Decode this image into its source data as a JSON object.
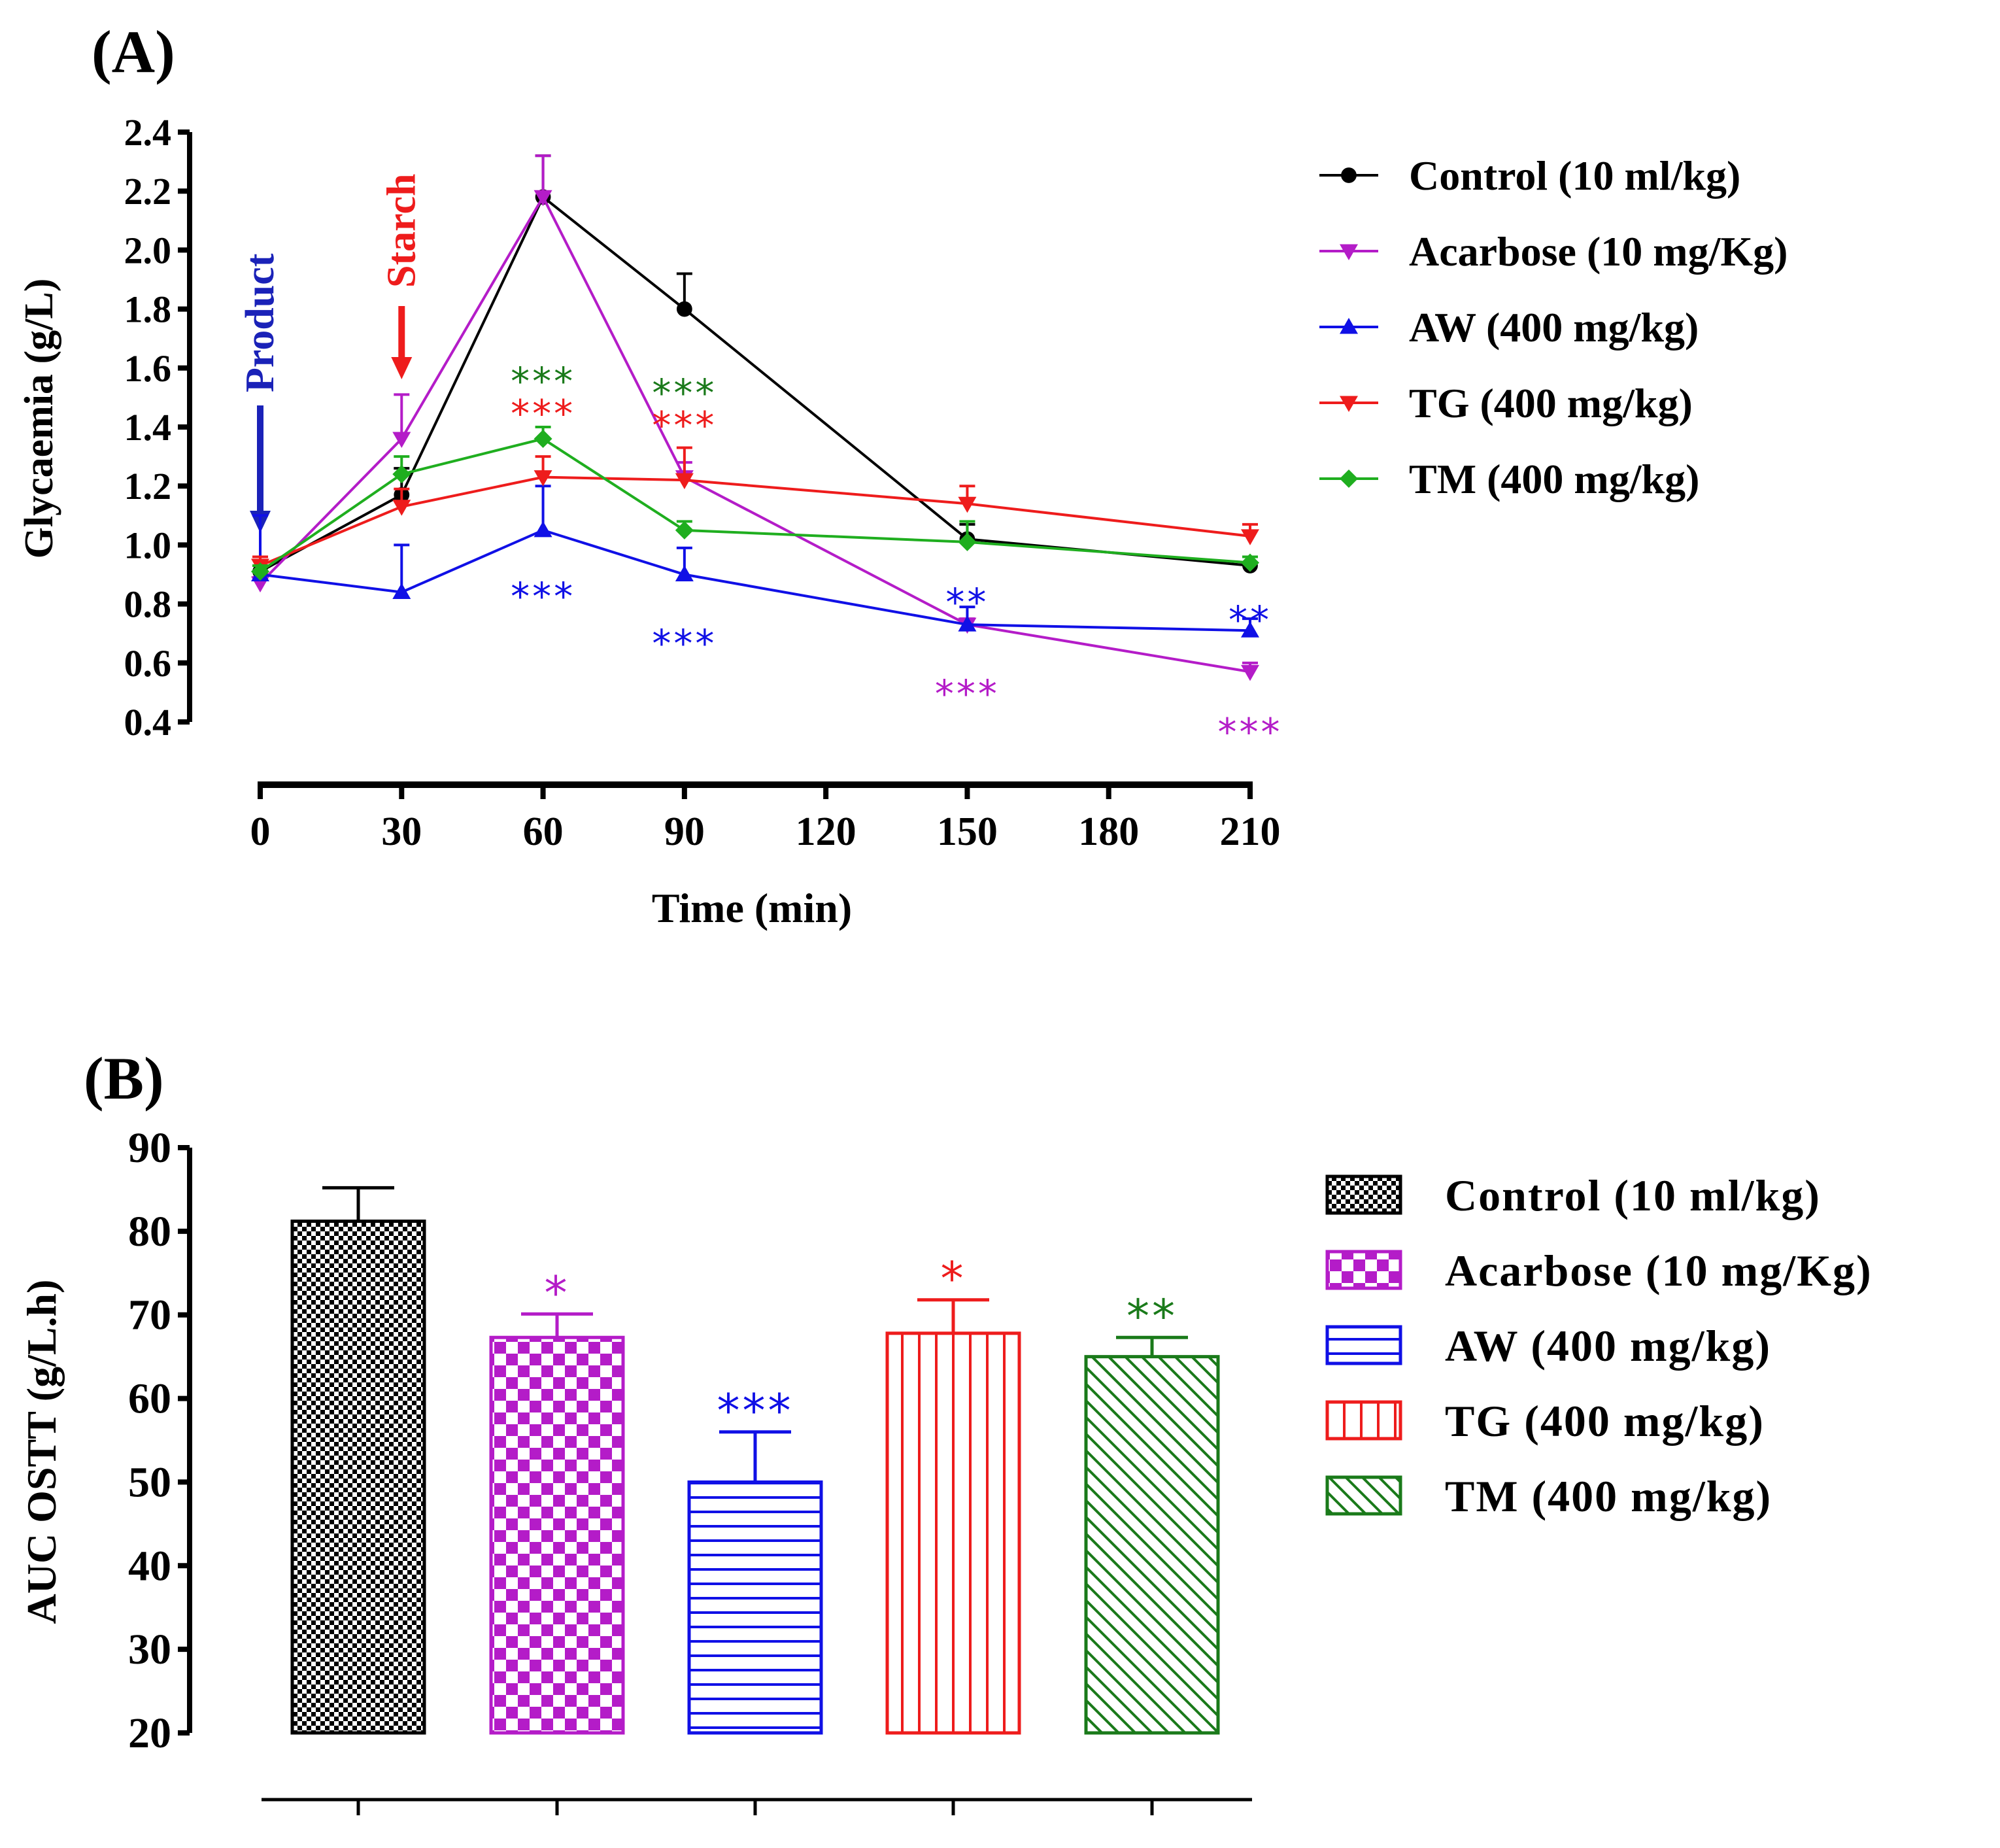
{
  "chart_data": [
    {
      "panel": "(A)",
      "type": "line",
      "xlabel": "Time (min)",
      "ylabel": "Glycaemia (g/L)",
      "x": [
        0,
        30,
        60,
        90,
        150,
        210
      ],
      "xticks": [
        "0",
        "30",
        "60",
        "90",
        "120",
        "150",
        "180",
        "210"
      ],
      "xtick_values": [
        0,
        30,
        60,
        90,
        120,
        150,
        180,
        210
      ],
      "xlim": [
        0,
        210
      ],
      "ylim": [
        0.4,
        2.4
      ],
      "yticks": [
        "0.4",
        "0.6",
        "0.8",
        "1.0",
        "1.2",
        "1.4",
        "1.6",
        "1.8",
        "2.0",
        "2.2",
        "2.4"
      ],
      "ytick_values": [
        0.4,
        0.6,
        0.8,
        1.0,
        1.2,
        1.4,
        1.6,
        1.8,
        2.0,
        2.2,
        2.4
      ],
      "legend_position": "right",
      "series": [
        {
          "name": "Control (10 ml/kg)",
          "color": "#000000",
          "marker": "circle",
          "values": [
            0.91,
            1.17,
            2.18,
            1.8,
            1.02,
            0.93
          ],
          "errors": [
            0.02,
            0.09,
            0.14,
            0.12,
            0.05,
            0.03
          ]
        },
        {
          "name": "Acarbose (10 mg/Kg)",
          "color": "#b41cc8",
          "marker": "triangle-down",
          "values": [
            0.87,
            1.36,
            2.18,
            1.23,
            0.73,
            0.57
          ],
          "errors": [
            0.02,
            0.15,
            0.14,
            0.05,
            0.02,
            0.03
          ]
        },
        {
          "name": "AW (400 mg/kg)",
          "color": "#1010e6",
          "marker": "triangle-up",
          "values": [
            0.9,
            0.84,
            1.05,
            0.9,
            0.73,
            0.71
          ],
          "errors": [
            0.2,
            0.16,
            0.15,
            0.09,
            0.06,
            0.04
          ]
        },
        {
          "name": "TG (400 mg/kg)",
          "color": "#ee1c1c",
          "marker": "triangle-down",
          "values": [
            0.93,
            1.13,
            1.23,
            1.22,
            1.14,
            1.03
          ],
          "errors": [
            0.03,
            0.06,
            0.07,
            0.11,
            0.06,
            0.04
          ]
        },
        {
          "name": "TM (400 mg/kg)",
          "color": "#1fae1f",
          "marker": "diamond",
          "values": [
            0.91,
            1.24,
            1.36,
            1.05,
            1.01,
            0.94
          ],
          "errors": [
            0.02,
            0.06,
            0.04,
            0.03,
            0.07,
            0.02
          ]
        }
      ],
      "arrows": [
        {
          "label": "Product",
          "x": 0,
          "color": "#1a22b8"
        },
        {
          "label": "Starch",
          "x": 30,
          "color": "#ee1c1c"
        }
      ],
      "annotations": [
        {
          "text": "***",
          "x": 60,
          "y": 1.56,
          "color": "#1a7a1a"
        },
        {
          "text": "***",
          "x": 60,
          "y": 1.45,
          "color": "#ee1c1c"
        },
        {
          "text": "***",
          "x": 60,
          "y": 0.83,
          "color": "#1010e6"
        },
        {
          "text": "***",
          "x": 90,
          "y": 1.52,
          "color": "#1a7a1a"
        },
        {
          "text": "***",
          "x": 90,
          "y": 1.41,
          "color": "#ee1c1c"
        },
        {
          "text": "***",
          "x": 90,
          "y": 0.67,
          "color": "#1010e6"
        },
        {
          "text": "**",
          "x": 150,
          "y": 0.81,
          "color": "#1010e6"
        },
        {
          "text": "***",
          "x": 150,
          "y": 0.5,
          "color": "#b41cc8"
        },
        {
          "text": "**",
          "x": 210,
          "y": 0.75,
          "color": "#1010e6"
        },
        {
          "text": "***",
          "x": 210,
          "y": 0.37,
          "color": "#b41cc8"
        }
      ]
    },
    {
      "panel": "(B)",
      "type": "bar",
      "xlabel": "",
      "ylabel": "AUC OSTT (g/L.h)",
      "ylim": [
        20,
        90
      ],
      "yticks": [
        "20",
        "30",
        "40",
        "50",
        "60",
        "70",
        "80",
        "90"
      ],
      "ytick_values": [
        20,
        30,
        40,
        50,
        60,
        70,
        80,
        90
      ],
      "legend_position": "right",
      "categories": [
        "Control (10 ml/kg)",
        "Acarbose (10 mg/Kg)",
        "AW (400 mg/kg)",
        "TG (400 mg/kg)",
        "TM (400 mg/kg)"
      ],
      "values": [
        81.2,
        67.3,
        50.0,
        67.8,
        65.0
      ],
      "errors": [
        4.0,
        2.8,
        6.0,
        4.0,
        2.3
      ],
      "colors": [
        "#000000",
        "#b41cc8",
        "#1010e6",
        "#ee1c1c",
        "#1a7a1a"
      ],
      "patterns": [
        "checker-fine",
        "checker-large",
        "horizontal-lines",
        "vertical-lines",
        "diagonal-lines"
      ],
      "significance": [
        "",
        "*",
        "***",
        "*",
        "**"
      ]
    }
  ]
}
